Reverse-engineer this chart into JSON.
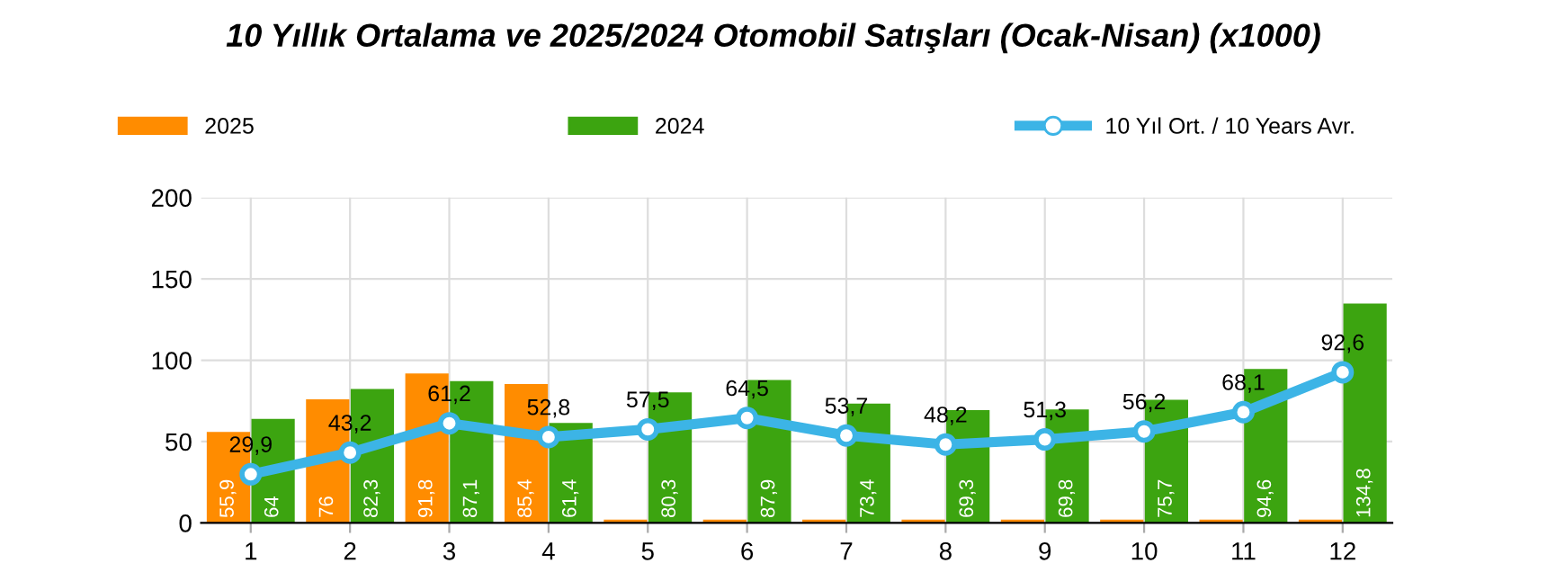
{
  "chart_data": {
    "type": "bar",
    "title": "10 Yıllık Ortalama ve 2025/2024 Otomobil Satışları (Ocak-Nisan) (x1000)",
    "categories": [
      "1",
      "2",
      "3",
      "4",
      "5",
      "6",
      "7",
      "8",
      "9",
      "10",
      "11",
      "12"
    ],
    "series": [
      {
        "name": "2025",
        "color": "#ff8c00",
        "values": [
          55.9,
          76,
          91.8,
          85.4,
          2,
          2,
          2,
          2,
          2,
          2,
          2,
          2
        ],
        "value_labels": [
          "55,9",
          "76",
          "91,8",
          "85,4",
          null,
          null,
          null,
          null,
          null,
          null,
          null,
          null
        ]
      },
      {
        "name": "2024",
        "color": "#3ca410",
        "values": [
          64,
          82.3,
          87.1,
          61.4,
          80.3,
          87.9,
          73.4,
          69.3,
          69.8,
          75.7,
          94.6,
          134.8
        ],
        "value_labels": [
          "64",
          "82,3",
          "87,1",
          "61,4",
          "80,3",
          "87,9",
          "73,4",
          "69,3",
          "69,8",
          "75,7",
          "94,6",
          "134,8"
        ]
      },
      {
        "name": "10 Yıl Ort. / 10 Years Avr.",
        "type": "line",
        "color": "#3cb4e6",
        "marker": "circle",
        "values": [
          29.9,
          43.2,
          61.2,
          52.8,
          57.5,
          64.5,
          53.7,
          48.2,
          51.3,
          56.2,
          68.1,
          92.6
        ],
        "value_labels": [
          "29,9",
          "43,2",
          "61,2",
          "52,8",
          "57,5",
          "64,5",
          "53,7",
          "48,2",
          "51,3",
          "56,2",
          "68,1",
          "92,6"
        ]
      }
    ],
    "ylim": [
      0,
      200
    ],
    "yticks": [
      0,
      50,
      100,
      150,
      200
    ],
    "grid": true,
    "legend": "top"
  }
}
